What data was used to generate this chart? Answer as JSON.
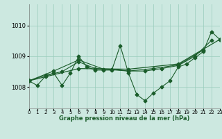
{
  "bg_color": "#cce8e0",
  "grid_color": "#99ccbb",
  "line_color": "#1a5c2a",
  "xlabel": "Graphe pression niveau de la mer (hPa)",
  "ylim": [
    1007.3,
    1010.7
  ],
  "yticks": [
    1008,
    1009,
    1010
  ],
  "xlim": [
    0,
    23
  ],
  "xticks": [
    0,
    1,
    2,
    3,
    4,
    5,
    6,
    7,
    8,
    9,
    10,
    11,
    12,
    13,
    14,
    15,
    16,
    17,
    18,
    19,
    20,
    21,
    22,
    23
  ],
  "series": [
    {
      "x": [
        0,
        1,
        2,
        3,
        4,
        5,
        6,
        7,
        8,
        9,
        10,
        11,
        12,
        13,
        14,
        15,
        16,
        17,
        18,
        19,
        20,
        21,
        22,
        23
      ],
      "y": [
        1008.2,
        1008.05,
        1008.35,
        1008.45,
        1008.05,
        1008.45,
        1009.0,
        1008.65,
        1008.55,
        1008.55,
        1008.55,
        1009.35,
        1008.45,
        1007.75,
        1007.55,
        1007.8,
        1008.0,
        1008.2,
        1008.65,
        1008.75,
        1008.95,
        1009.15,
        1009.8,
        1009.55
      ],
      "marker": "D",
      "markersize": 2.5,
      "linewidth": 0.8
    },
    {
      "x": [
        0,
        2,
        4,
        6,
        8,
        10,
        12,
        14,
        16,
        18,
        20,
        22
      ],
      "y": [
        1008.2,
        1008.38,
        1008.5,
        1008.82,
        1008.6,
        1008.58,
        1008.52,
        1008.52,
        1008.6,
        1008.7,
        1009.0,
        1009.52
      ],
      "marker": "D",
      "markersize": 2.5,
      "linewidth": 0.8
    },
    {
      "x": [
        0,
        3,
        6,
        9,
        12,
        15,
        18,
        21
      ],
      "y": [
        1008.2,
        1008.52,
        1008.88,
        1008.58,
        1008.52,
        1008.6,
        1008.72,
        1009.2
      ],
      "marker": "D",
      "markersize": 2.5,
      "linewidth": 0.8
    },
    {
      "x": [
        0,
        6,
        12,
        18,
        23
      ],
      "y": [
        1008.2,
        1008.6,
        1008.58,
        1008.75,
        1009.55
      ],
      "marker": "D",
      "markersize": 2.5,
      "linewidth": 0.9
    }
  ]
}
